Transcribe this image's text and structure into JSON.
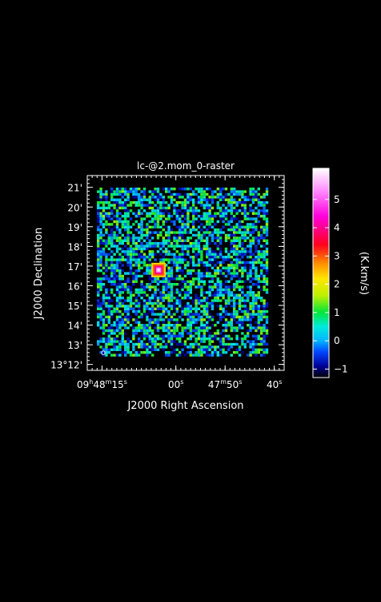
{
  "chart_data": {
    "type": "heatmap",
    "title": "lc-@2.mom_0-raster",
    "xlabel": "J2000 Right Ascension",
    "ylabel": "J2000 Declination",
    "colorbar_label": "(K.km/s)",
    "x_ticks": [
      {
        "h": "09",
        "m": "48",
        "s": "15",
        "value_sec": 15
      },
      {
        "s": "00",
        "value_sec": 0
      },
      {
        "m": "47",
        "s": "50",
        "value_sec": -10
      },
      {
        "s": "40",
        "value_sec": -20
      }
    ],
    "y_ticks": [
      {
        "label": "13°12'",
        "value_arcmin": 12
      },
      {
        "label": "13'",
        "value_arcmin": 13
      },
      {
        "label": "14'",
        "value_arcmin": 14
      },
      {
        "label": "15'",
        "value_arcmin": 15
      },
      {
        "label": "16'",
        "value_arcmin": 16
      },
      {
        "label": "17'",
        "value_arcmin": 17
      },
      {
        "label": "18'",
        "value_arcmin": 18
      },
      {
        "label": "19'",
        "value_arcmin": 19
      },
      {
        "label": "20'",
        "value_arcmin": 20
      },
      {
        "label": "21'",
        "value_arcmin": 21
      }
    ],
    "colorbar_ticks": [
      "−1",
      "0",
      "1",
      "2",
      "3",
      "4",
      "5"
    ],
    "colorbar_range": [
      -1.3,
      6.1
    ],
    "x_range_sec": [
      18,
      -22
    ],
    "y_range_arcmin": [
      11.7,
      21.6
    ],
    "grid": false,
    "source": {
      "ra_sec": 3.5,
      "dec_arcmin": 16.8,
      "peak": 6
    },
    "background_noise_range": [
      -1,
      1.5
    ],
    "beam_label": "o"
  }
}
